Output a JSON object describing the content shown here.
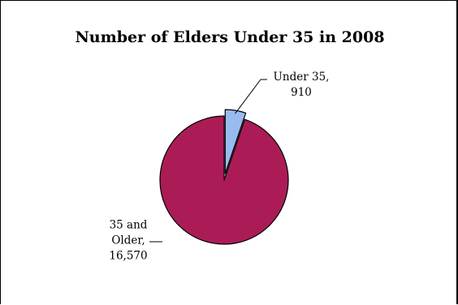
{
  "chart_data": {
    "type": "pie",
    "title": "Number of Elders Under 35 in 2008",
    "series": [
      {
        "values": [
          {
            "label": "Under 35",
            "value": 910,
            "value_label": "910",
            "color": "#99bbf0",
            "exploded": true
          },
          {
            "label": "35 and Older",
            "value": 16570,
            "value_label": "16,570",
            "color": "#ab1c56",
            "exploded": false
          }
        ]
      }
    ],
    "data_labels": [
      {
        "lines": [
          "Under 35,",
          "910"
        ]
      },
      {
        "lines": [
          "35 and",
          "Older,",
          "16,570"
        ]
      }
    ],
    "legend": "none"
  }
}
